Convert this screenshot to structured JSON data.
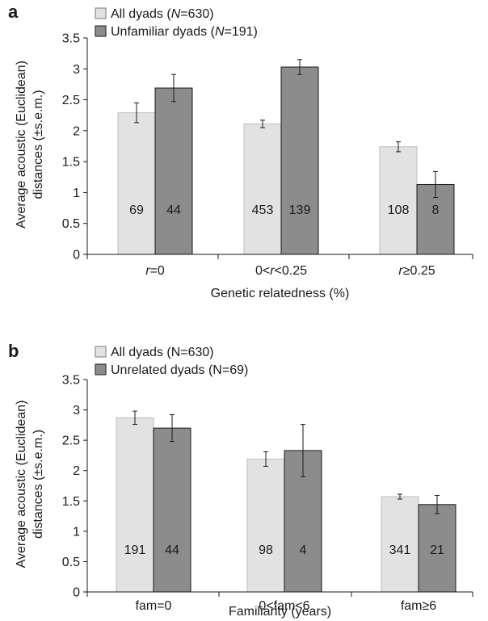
{
  "chart_data": [
    {
      "panel": "a",
      "type": "bar",
      "ylabel_line1": "Average acoustic (Euclidean)",
      "ylabel_line2": "distances (±s.e.m.)",
      "xlabel": "Genetic relatedness (%)",
      "ylim": [
        0,
        3.5
      ],
      "yticks": [
        "0",
        "0.5",
        "1",
        "1.5",
        "2",
        "2.5",
        "3",
        "3.5"
      ],
      "categories": [
        "r=0",
        "0<r<0.25",
        "r≥0.25"
      ],
      "categories_parts": [
        [
          "r",
          "=0"
        ],
        [
          "0<",
          "r",
          "<0.25"
        ],
        [
          "r",
          "≥0.25"
        ]
      ],
      "series": [
        {
          "name": "All dyads (N=630)",
          "legend_parts": [
            "All dyads (",
            "N",
            "=630)"
          ],
          "color": "#e2e2e2",
          "values": [
            2.29,
            2.11,
            1.74
          ],
          "sem": [
            0.16,
            0.06,
            0.08
          ],
          "n_labels": [
            "69",
            "453",
            "108"
          ]
        },
        {
          "name": "Unfamiliar dyads (N=191)",
          "legend_parts": [
            "Unfamiliar dyads (",
            "N",
            "=191)"
          ],
          "color": "#8c8c8c",
          "values": [
            2.69,
            3.03,
            1.13
          ],
          "sem": [
            0.22,
            0.12,
            0.21
          ],
          "n_labels": [
            "44",
            "139",
            "8"
          ]
        }
      ]
    },
    {
      "panel": "b",
      "type": "bar",
      "ylabel_line1": "Average acoustic (Euclidean)",
      "ylabel_line2": "distances (±s.e.m.)",
      "xlabel": "Familiarity (years)",
      "ylim": [
        0,
        3.5
      ],
      "yticks": [
        "0",
        "0.5",
        "1",
        "1.5",
        "2",
        "2.5",
        "3",
        "3.5"
      ],
      "categories": [
        "fam=0",
        "0<fam<6",
        "fam≥6"
      ],
      "series": [
        {
          "name": "All dyads (N=630)",
          "color": "#e2e2e2",
          "values": [
            2.87,
            2.19,
            1.57
          ],
          "sem": [
            0.11,
            0.12,
            0.04
          ],
          "n_labels": [
            "191",
            "98",
            "341"
          ]
        },
        {
          "name": "Unrelated dyads (N=69)",
          "color": "#8c8c8c",
          "values": [
            2.7,
            2.33,
            1.44
          ],
          "sem": [
            0.22,
            0.43,
            0.15
          ],
          "n_labels": [
            "44",
            "4",
            "21"
          ]
        }
      ]
    }
  ]
}
